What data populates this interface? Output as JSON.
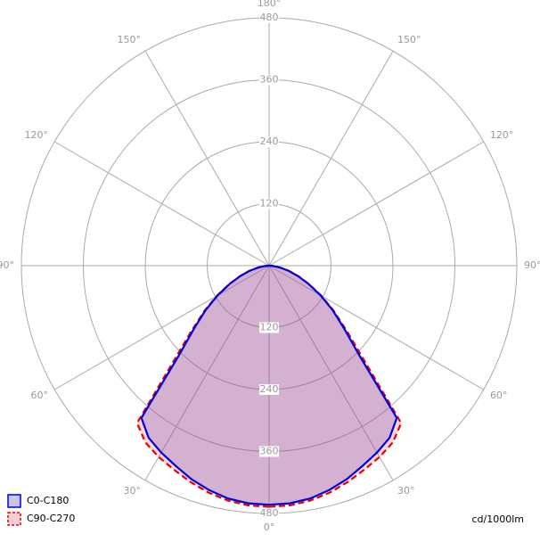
{
  "chart_data": {
    "type": "polar",
    "rlim": [
      0,
      480
    ],
    "rticks": [
      120,
      240,
      360,
      480
    ],
    "angle_ticks": [
      {
        "value": 0,
        "label": "0°"
      },
      {
        "value": 30,
        "label": "30°"
      },
      {
        "value": 60,
        "label": "60°"
      },
      {
        "value": 90,
        "label": "90°"
      },
      {
        "value": 120,
        "label": "120°"
      },
      {
        "value": 150,
        "label": "150°"
      },
      {
        "value": 180,
        "label": "180°"
      }
    ],
    "x": [
      0,
      5,
      10,
      15,
      20,
      25,
      30,
      35,
      40,
      45,
      50,
      55,
      60,
      65,
      70,
      75,
      80,
      85,
      90
    ],
    "series": [
      {
        "name": "C0-C180",
        "color": "#0000dd",
        "fill": "#4a3ad0",
        "dash": false,
        "values": [
          463,
          462,
          458,
          450,
          440,
          428,
          418,
          407,
          385,
          249,
          190,
          150,
          115,
          85,
          60,
          40,
          22,
          8,
          0
        ]
      },
      {
        "name": "C90-C270",
        "color": "#ee0000",
        "fill": "#e05a6a",
        "dash": true,
        "values": [
          467,
          466,
          462,
          455,
          446,
          436,
          428,
          418,
          398,
          262,
          196,
          153,
          117,
          86,
          61,
          40,
          22,
          8,
          0
        ]
      }
    ],
    "unit_label": "cd/1000lm",
    "grid": true
  }
}
